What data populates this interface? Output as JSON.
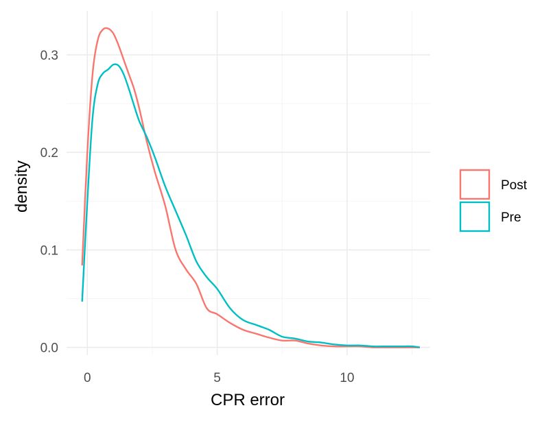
{
  "chart_data": {
    "type": "line",
    "subtype": "density",
    "xlabel": "CPR error",
    "ylabel": "density",
    "xlim": [
      -0.8,
      13.2
    ],
    "ylim": [
      -0.008,
      0.345
    ],
    "x_ticks": [
      0,
      5,
      10
    ],
    "x_tick_labels": [
      "0",
      "5",
      "10"
    ],
    "y_ticks": [
      0.0,
      0.1,
      0.2,
      0.3
    ],
    "y_tick_labels": [
      "0.0",
      "0.1",
      "0.2",
      "0.3"
    ],
    "grid": true,
    "legend_position": "right",
    "series": [
      {
        "name": "Post",
        "color": "#f8766d",
        "x": [
          -0.2,
          0.0,
          0.2,
          0.4,
          0.6,
          0.8,
          1.0,
          1.2,
          1.4,
          1.6,
          1.8,
          2.0,
          2.3,
          2.6,
          3.0,
          3.4,
          3.8,
          4.2,
          4.6,
          5.0,
          5.5,
          6.0,
          6.5,
          7.0,
          7.5,
          8.0,
          8.5,
          9.0,
          9.5,
          10.0,
          10.5,
          11.0,
          11.5,
          12.0,
          12.5,
          12.8
        ],
        "y": [
          0.084,
          0.2,
          0.28,
          0.315,
          0.326,
          0.327,
          0.322,
          0.31,
          0.295,
          0.28,
          0.265,
          0.245,
          0.21,
          0.18,
          0.145,
          0.1,
          0.08,
          0.065,
          0.04,
          0.034,
          0.025,
          0.018,
          0.014,
          0.01,
          0.007,
          0.007,
          0.004,
          0.002,
          0.001,
          0.001,
          0.001,
          0.0,
          0.0,
          0.0,
          0.0,
          0.0
        ]
      },
      {
        "name": "Pre",
        "color": "#00bfc4",
        "x": [
          -0.2,
          0.0,
          0.2,
          0.4,
          0.6,
          0.8,
          1.0,
          1.2,
          1.4,
          1.6,
          1.8,
          2.0,
          2.3,
          2.6,
          3.0,
          3.4,
          3.8,
          4.2,
          4.6,
          5.0,
          5.5,
          6.0,
          6.5,
          7.0,
          7.5,
          8.0,
          8.5,
          9.0,
          9.5,
          10.0,
          10.5,
          11.0,
          11.5,
          12.0,
          12.5,
          12.8
        ],
        "y": [
          0.047,
          0.15,
          0.235,
          0.27,
          0.281,
          0.285,
          0.29,
          0.289,
          0.28,
          0.265,
          0.248,
          0.232,
          0.215,
          0.195,
          0.165,
          0.14,
          0.115,
          0.088,
          0.072,
          0.06,
          0.04,
          0.028,
          0.023,
          0.018,
          0.011,
          0.009,
          0.006,
          0.005,
          0.003,
          0.002,
          0.002,
          0.001,
          0.001,
          0.001,
          0.001,
          0.0
        ]
      }
    ]
  }
}
